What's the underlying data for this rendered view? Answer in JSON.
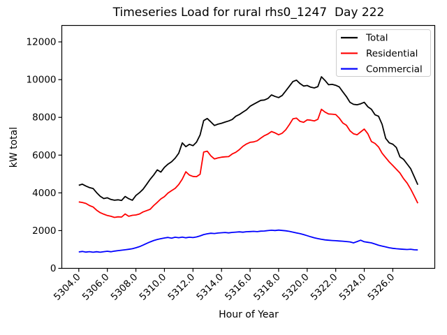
{
  "title": "Timeseries Load for rural rhs0_1247  Day 222",
  "chart_data": {
    "type": "line",
    "title": "Timeseries Load for rural rhs0_1247  Day 222",
    "xlabel": "Hour of Year",
    "ylabel": "kW total",
    "xlim": [
      5302.81,
      5328.94
    ],
    "ylim": [
      0,
      12870
    ],
    "grid": false,
    "legend_position": "upper right",
    "x_ticks": [
      5304,
      5306,
      5308,
      5310,
      5312,
      5314,
      5316,
      5318,
      5320,
      5322,
      5324,
      5326
    ],
    "x_tick_labels": [
      "5304.0",
      "5306.0",
      "5308.0",
      "5310.0",
      "5312.0",
      "5314.0",
      "5316.0",
      "5318.0",
      "5320.0",
      "5322.0",
      "5324.0",
      "5326.0"
    ],
    "y_ticks": [
      0,
      2000,
      4000,
      6000,
      8000,
      10000,
      12000
    ],
    "y_tick_labels": [
      "0",
      "2000",
      "4000",
      "6000",
      "8000",
      "10000",
      "12000"
    ],
    "x": [
      5304.0,
      5304.25,
      5304.5,
      5304.75,
      5305.0,
      5305.25,
      5305.5,
      5305.75,
      5306.0,
      5306.25,
      5306.5,
      5306.75,
      5307.0,
      5307.25,
      5307.5,
      5307.75,
      5308.0,
      5308.25,
      5308.5,
      5308.75,
      5309.0,
      5309.25,
      5309.5,
      5309.75,
      5310.0,
      5310.25,
      5310.5,
      5310.75,
      5311.0,
      5311.25,
      5311.5,
      5311.75,
      5312.0,
      5312.25,
      5312.5,
      5312.75,
      5313.0,
      5313.25,
      5313.5,
      5313.75,
      5314.0,
      5314.25,
      5314.5,
      5314.75,
      5315.0,
      5315.25,
      5315.5,
      5315.75,
      5316.0,
      5316.25,
      5316.5,
      5316.75,
      5317.0,
      5317.25,
      5317.5,
      5317.75,
      5318.0,
      5318.25,
      5318.5,
      5318.75,
      5319.0,
      5319.25,
      5319.5,
      5319.75,
      5320.0,
      5320.25,
      5320.5,
      5320.75,
      5321.0,
      5321.25,
      5321.5,
      5321.75,
      5322.0,
      5322.25,
      5322.5,
      5322.75,
      5323.0,
      5323.25,
      5323.5,
      5323.75,
      5324.0,
      5324.25,
      5324.5,
      5324.75,
      5325.0,
      5325.25,
      5325.5,
      5325.75,
      5326.0,
      5326.25,
      5326.5,
      5326.75,
      5327.0,
      5327.25,
      5327.5,
      5327.75
    ],
    "series": [
      {
        "name": "Total",
        "color": "#000000",
        "values": [
          4400,
          4460,
          4360,
          4280,
          4230,
          4010,
          3820,
          3700,
          3740,
          3650,
          3610,
          3630,
          3600,
          3810,
          3690,
          3610,
          3860,
          4010,
          4190,
          4450,
          4720,
          4950,
          5220,
          5100,
          5350,
          5520,
          5650,
          5840,
          6100,
          6650,
          6450,
          6570,
          6500,
          6690,
          7070,
          7830,
          7940,
          7760,
          7570,
          7640,
          7690,
          7750,
          7810,
          7890,
          8060,
          8150,
          8280,
          8400,
          8590,
          8700,
          8800,
          8900,
          8920,
          9000,
          9190,
          9110,
          9050,
          9160,
          9400,
          9650,
          9900,
          9970,
          9790,
          9660,
          9690,
          9600,
          9560,
          9630,
          10150,
          9960,
          9730,
          9750,
          9700,
          9610,
          9350,
          9100,
          8800,
          8690,
          8670,
          8720,
          8800,
          8560,
          8430,
          8140,
          8060,
          7630,
          6890,
          6650,
          6580,
          6400,
          5910,
          5780,
          5530,
          5280,
          4860,
          4430
        ]
      },
      {
        "name": "Residential",
        "color": "#ff0000",
        "values": [
          3520,
          3490,
          3440,
          3330,
          3250,
          3080,
          2950,
          2870,
          2800,
          2760,
          2700,
          2730,
          2720,
          2880,
          2760,
          2810,
          2830,
          2880,
          2990,
          3060,
          3130,
          3330,
          3500,
          3680,
          3800,
          3990,
          4120,
          4240,
          4440,
          4730,
          5120,
          4940,
          4870,
          4860,
          4990,
          6160,
          6210,
          5960,
          5800,
          5850,
          5890,
          5910,
          5920,
          6060,
          6150,
          6290,
          6470,
          6590,
          6680,
          6700,
          6760,
          6900,
          7030,
          7120,
          7250,
          7180,
          7080,
          7160,
          7340,
          7620,
          7920,
          7960,
          7790,
          7740,
          7870,
          7850,
          7810,
          7900,
          8430,
          8280,
          8180,
          8170,
          8150,
          7960,
          7700,
          7580,
          7290,
          7130,
          7080,
          7230,
          7380,
          7130,
          6720,
          6620,
          6430,
          6100,
          5870,
          5640,
          5450,
          5250,
          5050,
          4760,
          4520,
          4200,
          3830,
          3450
        ]
      },
      {
        "name": "Commercial",
        "color": "#0000ff",
        "values": [
          870,
          895,
          860,
          885,
          855,
          880,
          855,
          885,
          905,
          880,
          915,
          940,
          960,
          985,
          1010,
          1040,
          1090,
          1150,
          1230,
          1320,
          1400,
          1475,
          1530,
          1570,
          1610,
          1640,
          1600,
          1650,
          1625,
          1655,
          1620,
          1650,
          1630,
          1665,
          1720,
          1790,
          1830,
          1860,
          1845,
          1870,
          1885,
          1900,
          1880,
          1905,
          1920,
          1935,
          1915,
          1940,
          1950,
          1960,
          1945,
          1970,
          1980,
          2000,
          2020,
          2005,
          2025,
          2010,
          1990,
          1960,
          1920,
          1880,
          1840,
          1790,
          1730,
          1670,
          1620,
          1575,
          1540,
          1510,
          1490,
          1475,
          1465,
          1450,
          1440,
          1420,
          1400,
          1350,
          1420,
          1490,
          1410,
          1380,
          1350,
          1290,
          1225,
          1180,
          1140,
          1090,
          1060,
          1040,
          1025,
          1010,
          1000,
          1015,
          985,
          975
        ]
      }
    ]
  }
}
